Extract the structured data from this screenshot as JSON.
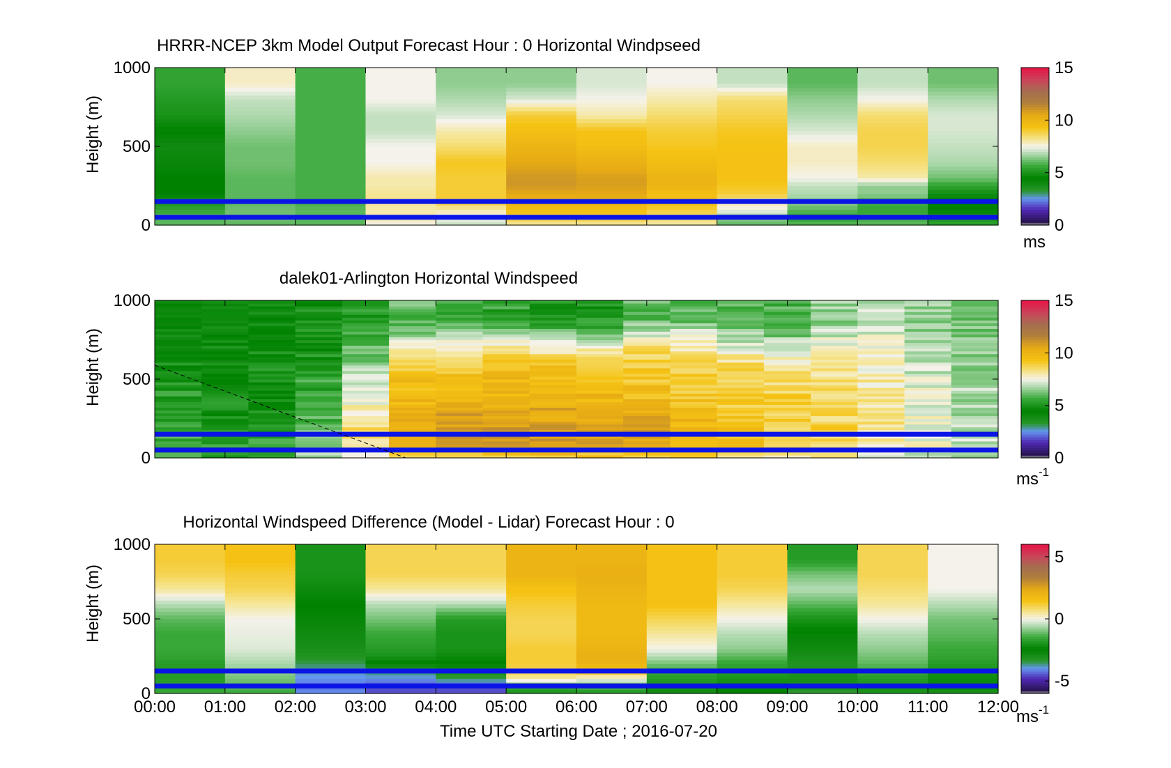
{
  "figure": {
    "xlabel": "Time UTC  Starting Date ; 2016-07-20",
    "x_tick_labels": [
      "00:00",
      "01:00",
      "02:00",
      "03:00",
      "04:00",
      "05:00",
      "06:00",
      "07:00",
      "08:00",
      "09:00",
      "10:00",
      "11:00",
      "12:00"
    ]
  },
  "chart_data": [
    {
      "type": "heatmap",
      "title": "HRRR-NCEP 3km Model Output   Forecast Hour : 0 Horizontal Windpseed",
      "ylabel": "Height (m)",
      "y_ticks": [
        0,
        500,
        1000
      ],
      "ylim": [
        0,
        1000
      ],
      "x_hours": [
        0,
        12
      ],
      "colorbar": {
        "ticks": [
          0,
          5,
          10,
          15
        ],
        "label": "ms",
        "label_sup": "",
        "range": [
          0,
          15
        ]
      },
      "heights_m": [
        0,
        50,
        100,
        150,
        200,
        250,
        300,
        400,
        500,
        600,
        700,
        800,
        900,
        1000
      ],
      "columns": [
        [
          6.0,
          6.0,
          5.5,
          5.0,
          4.5,
          4.5,
          4.5,
          4.2,
          4.0,
          4.5,
          5.0,
          5.2,
          5.5
        ],
        [
          6.0,
          6.2,
          6.2,
          6.0,
          6.0,
          6.0,
          6.0,
          6.2,
          6.2,
          6.5,
          6.8,
          7.0,
          7.8
        ],
        [
          6.0,
          6.0,
          6.0,
          5.8,
          5.8,
          5.8,
          5.8,
          5.8,
          5.8,
          5.8,
          5.8,
          5.8,
          5.8
        ],
        [
          7.5,
          8.0,
          8.0,
          8.2,
          8.2,
          8.0,
          8.0,
          7.5,
          7.5,
          7.0,
          7.0,
          7.5,
          7.5
        ],
        [
          7.0,
          7.5,
          8.0,
          9.0,
          9.0,
          9.0,
          9.0,
          9.2,
          8.5,
          8.0,
          7.2,
          6.8,
          6.5
        ],
        [
          8.0,
          9.0,
          9.5,
          10.0,
          10.5,
          11.0,
          11.0,
          10.5,
          10.0,
          9.5,
          9.0,
          7.2,
          6.5
        ],
        [
          8.0,
          9.0,
          9.5,
          10.0,
          10.5,
          10.8,
          10.8,
          10.2,
          9.5,
          9.3,
          8.0,
          7.5,
          7.2
        ],
        [
          8.0,
          8.5,
          9.0,
          9.5,
          9.5,
          10.0,
          10.0,
          9.6,
          9.2,
          9.0,
          8.5,
          8.0,
          7.5
        ],
        [
          6.0,
          6.5,
          7.5,
          8.0,
          9.0,
          9.2,
          9.4,
          9.4,
          9.3,
          9.2,
          8.8,
          8.5,
          7.0
        ],
        [
          6.0,
          5.5,
          6.0,
          6.5,
          6.8,
          7.0,
          7.5,
          7.8,
          7.8,
          7.2,
          6.8,
          6.5,
          6.0
        ],
        [
          6.0,
          5.8,
          5.5,
          5.8,
          6.5,
          6.5,
          8.0,
          8.5,
          8.8,
          8.8,
          8.5,
          7.5,
          7.0
        ],
        [
          5.5,
          5.0,
          4.5,
          4.5,
          4.8,
          5.5,
          6.2,
          6.8,
          7.0,
          7.2,
          7.2,
          6.8,
          6.2
        ]
      ],
      "blue_lines_m": [
        50,
        150
      ]
    },
    {
      "type": "heatmap",
      "title": "dalek01-Arlington  Horizontal Windspeed",
      "ylabel": "Height (m)",
      "y_ticks": [
        0,
        500,
        1000
      ],
      "ylim": [
        0,
        1000
      ],
      "x_hours": [
        0,
        12
      ],
      "colorbar": {
        "ticks": [
          0,
          5,
          10,
          15
        ],
        "label": "ms",
        "label_sup": "-1",
        "range": [
          0,
          15
        ]
      },
      "heights_m": [
        0,
        50,
        100,
        150,
        200,
        250,
        300,
        400,
        500,
        600,
        700,
        800,
        900,
        1000
      ],
      "columns": [
        [
          6.0,
          5.8,
          5.8,
          5.6,
          5.5,
          5.5,
          5.4,
          5.3,
          5.0,
          4.8,
          4.5,
          4.5,
          4.5
        ],
        [
          5.5,
          5.5,
          5.2,
          5.2,
          5.0,
          5.0,
          5.0,
          4.8,
          4.6,
          4.6,
          4.6,
          4.5,
          4.5
        ],
        [
          5.8,
          5.8,
          5.5,
          5.5,
          5.5,
          5.2,
          5.0,
          5.0,
          5.0,
          5.0,
          4.8,
          4.6,
          4.6
        ],
        [
          6.5,
          6.5,
          6.0,
          6.0,
          5.8,
          5.8,
          5.6,
          5.5,
          5.5,
          5.2,
          5.0,
          5.0,
          5.0
        ],
        [
          7.5,
          8.0,
          8.5,
          8.5,
          8.5,
          8.2,
          8.0,
          7.5,
          7.0,
          6.5,
          6.0,
          5.5,
          5.2
        ],
        [
          8.5,
          9.5,
          10.0,
          10.5,
          10.5,
          10.0,
          10.0,
          9.8,
          9.5,
          9.0,
          8.0,
          6.5,
          6.0
        ],
        [
          9.0,
          10.0,
          10.8,
          11.0,
          11.0,
          10.8,
          10.5,
          10.0,
          9.5,
          9.0,
          8.0,
          6.5,
          5.5
        ],
        [
          9.0,
          10.2,
          11.0,
          11.2,
          11.0,
          10.8,
          10.5,
          10.0,
          9.8,
          9.2,
          8.2,
          6.5,
          5.5
        ],
        [
          9.0,
          10.0,
          10.8,
          11.0,
          10.8,
          10.5,
          10.5,
          10.0,
          9.8,
          9.2,
          8.0,
          6.0,
          5.0
        ],
        [
          9.0,
          10.0,
          10.5,
          10.8,
          10.5,
          10.2,
          10.0,
          9.8,
          9.5,
          9.2,
          8.0,
          6.0,
          5.0
        ],
        [
          9.0,
          9.8,
          10.5,
          10.8,
          10.8,
          10.5,
          10.0,
          9.6,
          9.2,
          9.0,
          8.5,
          7.0,
          6.0
        ],
        [
          9.0,
          9.5,
          10.0,
          10.2,
          10.0,
          9.8,
          9.5,
          9.2,
          9.0,
          8.8,
          8.0,
          7.0,
          6.0
        ],
        [
          8.5,
          9.2,
          9.5,
          9.5,
          9.5,
          9.2,
          9.0,
          9.0,
          8.8,
          8.5,
          7.5,
          6.5,
          6.0
        ],
        [
          8.0,
          8.8,
          9.0,
          9.0,
          9.0,
          8.8,
          8.8,
          8.8,
          8.5,
          8.0,
          7.2,
          6.2,
          5.8
        ],
        [
          8.0,
          8.5,
          8.8,
          8.8,
          8.8,
          8.6,
          8.6,
          8.5,
          8.5,
          8.0,
          7.5,
          7.0,
          6.5
        ],
        [
          7.5,
          8.0,
          8.2,
          8.2,
          8.2,
          8.2,
          8.0,
          8.0,
          8.0,
          7.8,
          7.5,
          7.2,
          7.0
        ],
        [
          7.0,
          7.5,
          7.6,
          7.5,
          7.5,
          7.5,
          7.5,
          7.4,
          7.2,
          7.0,
          6.8,
          6.6,
          6.5
        ],
        [
          6.5,
          6.8,
          7.0,
          7.0,
          7.0,
          6.8,
          6.8,
          6.8,
          6.8,
          6.5,
          6.3,
          6.2,
          6.0
        ]
      ],
      "blue_lines_m": [
        50,
        150
      ]
    },
    {
      "type": "heatmap",
      "title": "Horizontal Windspeed Difference (Model - Lidar) Forecast Hour : 0",
      "ylabel": "Height (m)",
      "y_ticks": [
        0,
        500,
        1000
      ],
      "ylim": [
        0,
        1000
      ],
      "x_hours": [
        0,
        12
      ],
      "colorbar": {
        "ticks": [
          -5,
          0,
          5
        ],
        "label": "ms",
        "label_sup": "-1",
        "range": [
          -6,
          6
        ]
      },
      "heights_m": [
        0,
        50,
        100,
        150,
        200,
        250,
        300,
        400,
        500,
        600,
        700,
        800,
        900,
        1000
      ],
      "columns": [
        [
          -1.5,
          -1.6,
          -1.8,
          -1.8,
          -1.8,
          -1.6,
          -1.5,
          -1.5,
          -1.2,
          -0.5,
          0.5,
          1.0,
          1.2
        ],
        [
          -1.5,
          -1.2,
          -1.0,
          -0.8,
          -0.6,
          -0.4,
          -0.2,
          -0.1,
          0.0,
          0.5,
          1.0,
          1.2,
          1.5
        ],
        [
          -4.0,
          -4.2,
          -4.0,
          -3.8,
          -3.5,
          -3.2,
          -3.0,
          -2.8,
          -2.6,
          -2.4,
          -2.2,
          -2.0,
          -2.0
        ],
        [
          -4.5,
          -4.5,
          -4.0,
          -3.5,
          -2.5,
          -2.0,
          -1.8,
          -1.5,
          -1.0,
          -0.5,
          0.5,
          1.0,
          1.0
        ],
        [
          -4.5,
          -4.5,
          -3.5,
          -3.0,
          -2.5,
          -2.2,
          -2.0,
          -2.0,
          -1.8,
          -0.5,
          0.5,
          1.0,
          1.0
        ],
        [
          -2.0,
          -1.5,
          0.5,
          1.0,
          1.2,
          1.2,
          1.2,
          1.0,
          1.0,
          1.2,
          1.5,
          2.0,
          2.0
        ],
        [
          -2.0,
          -1.2,
          0.0,
          1.5,
          2.0,
          2.2,
          2.0,
          1.8,
          1.8,
          1.8,
          2.0,
          2.2,
          2.0
        ],
        [
          -2.2,
          -2.0,
          -1.8,
          -1.5,
          -1.0,
          -0.5,
          0.0,
          0.5,
          1.0,
          1.5,
          1.5,
          1.5,
          1.5
        ],
        [
          -2.5,
          -2.2,
          -2.0,
          -1.8,
          -1.6,
          -1.2,
          -0.8,
          -0.5,
          0.0,
          0.5,
          1.0,
          1.2,
          1.2
        ],
        [
          -3.5,
          -3.0,
          -3.0,
          -3.2,
          -3.2,
          -3.0,
          -2.8,
          -2.5,
          -2.0,
          -1.2,
          -0.5,
          -1.0,
          -1.8
        ],
        [
          -2.0,
          -2.0,
          -1.8,
          -1.5,
          -1.2,
          -1.0,
          -0.8,
          -0.5,
          0.0,
          0.5,
          0.8,
          1.0,
          1.0
        ],
        [
          -2.0,
          -2.2,
          -2.2,
          -2.0,
          -1.8,
          -1.6,
          -1.5,
          -1.2,
          -1.0,
          -0.5,
          0.0,
          0.0,
          0.0
        ]
      ],
      "blue_lines_m": [
        50,
        150
      ]
    }
  ]
}
